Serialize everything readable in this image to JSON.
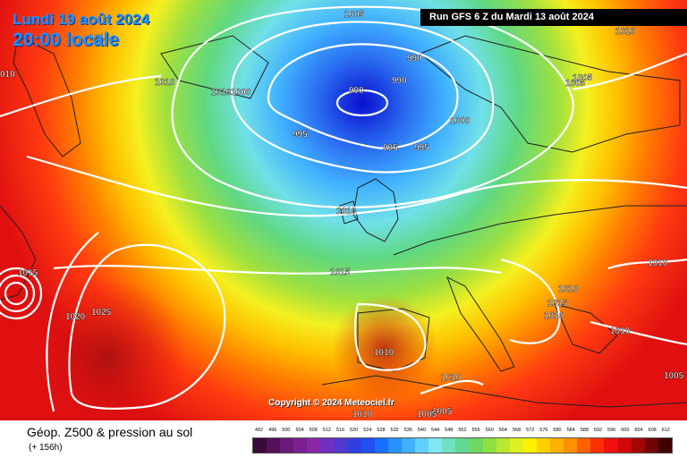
{
  "header": {
    "date": "Lundi 19 août 2024",
    "time": "20:00 locale",
    "run": "Run GFS 6 Z du Mardi 13 août 2024"
  },
  "copyright": "Copyright © 2024 Meteociel.fr",
  "footer": {
    "title": "Géop. Z500 & pression au sol",
    "subtitle": "(+ 156h)"
  },
  "scale": {
    "values": [
      "492",
      "496",
      "500",
      "504",
      "508",
      "512",
      "516",
      "520",
      "524",
      "528",
      "532",
      "536",
      "540",
      "544",
      "548",
      "552",
      "556",
      "560",
      "564",
      "568",
      "572",
      "576",
      "580",
      "584",
      "588",
      "592",
      "596",
      "600",
      "604",
      "608",
      "612"
    ],
    "colors": [
      "#3a0a3a",
      "#55105a",
      "#6a1a7a",
      "#7a2090",
      "#8a28a8",
      "#7030c0",
      "#5038d0",
      "#3040e0",
      "#2050f0",
      "#1870ff",
      "#2890ff",
      "#40b0ff",
      "#60d0ff",
      "#80e8f0",
      "#70e0c0",
      "#60d890",
      "#70d860",
      "#90e040",
      "#b8e830",
      "#e0f020",
      "#fff000",
      "#ffd000",
      "#ffb000",
      "#ff9000",
      "#ff6000",
      "#ff3000",
      "#f01010",
      "#d00808",
      "#a00808",
      "#700404",
      "#400000"
    ]
  },
  "isobar_labels": [
    "1005",
    "1010",
    "990",
    "990",
    "990",
    "1000",
    "1000",
    "995",
    "995",
    "995",
    "1010",
    "1005",
    "1005",
    "1010",
    "1010",
    "1015",
    "1010",
    "1010",
    "1015",
    "1010",
    "1020",
    "1025",
    "1010",
    "1010",
    "1005",
    "1005",
    "1010",
    "1005",
    "1010",
    "1015",
    "010",
    "1015"
  ],
  "colors": {
    "low_center": "#0a2bd8",
    "high_center": "#c81414",
    "isobar": "#ffffff"
  }
}
